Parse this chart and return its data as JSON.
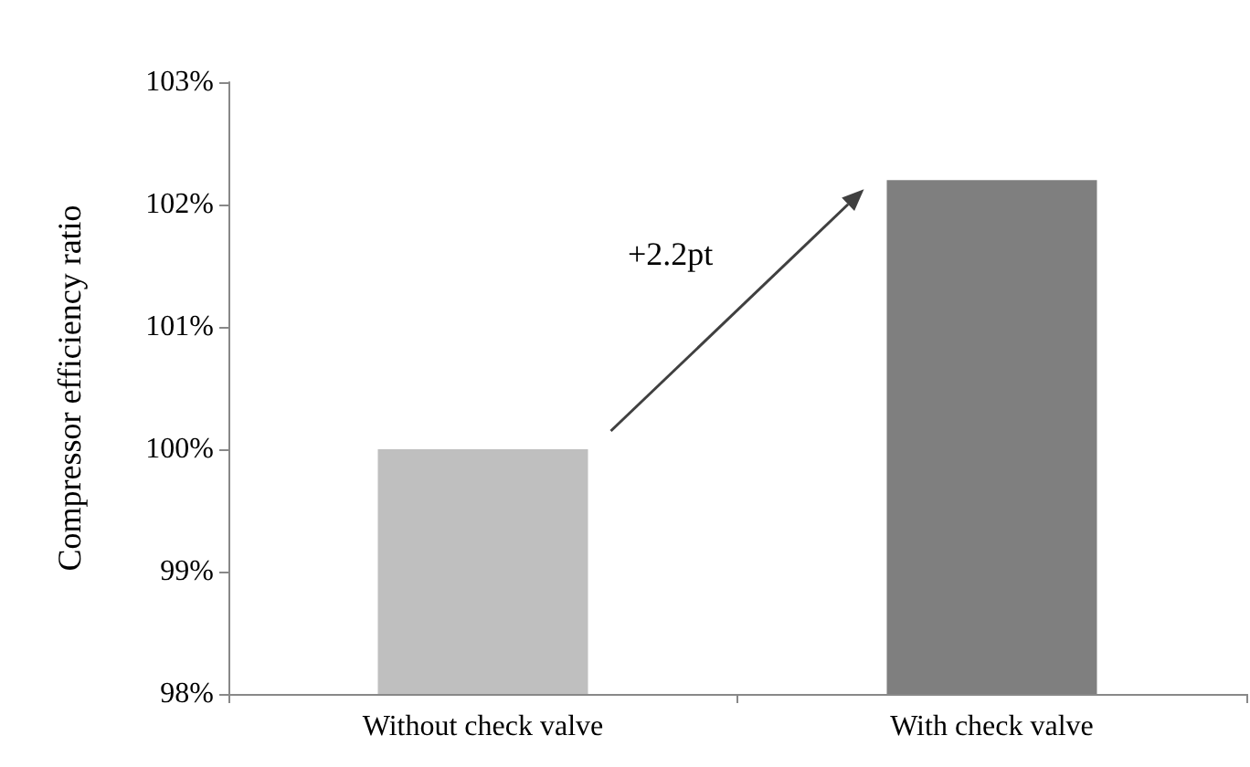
{
  "chart_data": {
    "type": "bar",
    "ylabel": "Compressor efficiency ratio",
    "categories": [
      "Without check valve",
      "With check valve"
    ],
    "values": [
      100,
      102.2
    ],
    "colors": [
      "#bfbfbf",
      "#7f7f7f"
    ],
    "ylim": [
      98,
      103
    ],
    "yticks": [
      {
        "value": 98,
        "label": "98%"
      },
      {
        "value": 99,
        "label": "99%"
      },
      {
        "value": 100,
        "label": "100%"
      },
      {
        "value": 101,
        "label": "101%"
      },
      {
        "value": 102,
        "label": "102%"
      },
      {
        "value": 103,
        "label": "103%"
      }
    ],
    "annotations": [
      "+2.2pt"
    ]
  }
}
